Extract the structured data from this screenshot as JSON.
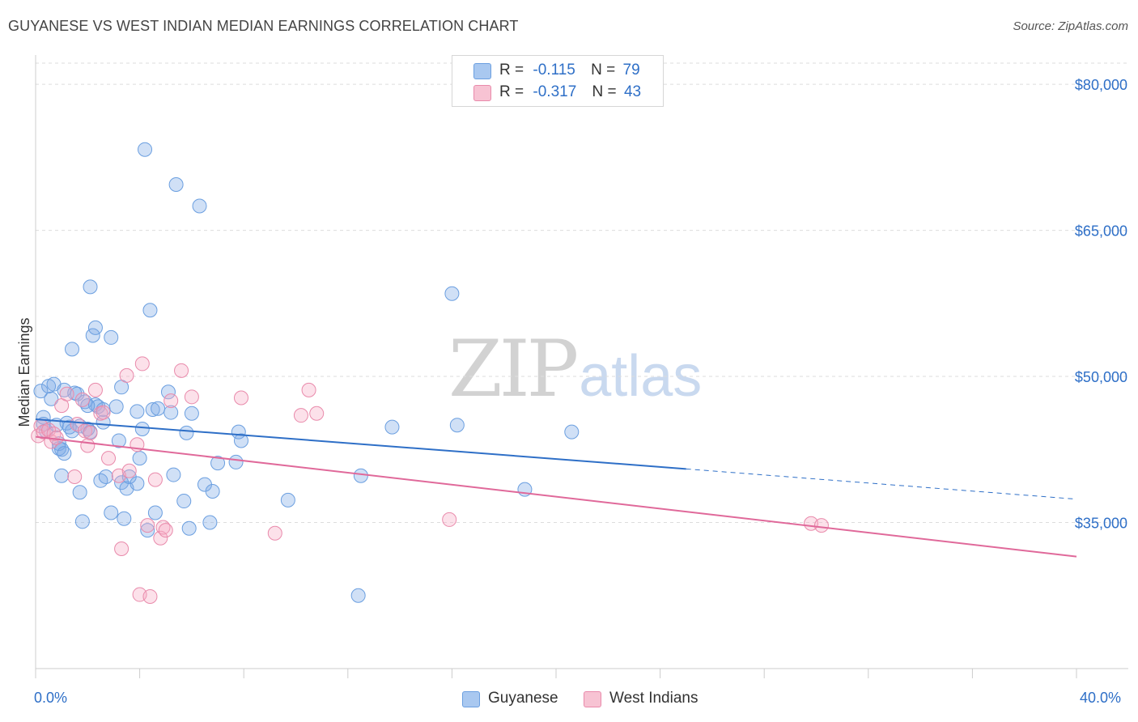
{
  "title": "GUYANESE VS WEST INDIAN MEDIAN EARNINGS CORRELATION CHART",
  "source": "Source: ZipAtlas.com",
  "watermark": {
    "zip": "ZIP",
    "atlas": "atlas"
  },
  "legend": {
    "r_label": "R =",
    "n_label": "N =",
    "series": [
      {
        "r": "-0.115",
        "n": "79",
        "color": "#a9c8f0",
        "border": "#6b9fe0"
      },
      {
        "r": "-0.317",
        "n": "43",
        "color": "#f7c3d3",
        "border": "#e98aab"
      }
    ]
  },
  "bottom_legend": [
    "Guyanese",
    "West Indians"
  ],
  "x_axis": {
    "min_label": "0.0%",
    "max_label": "40.0%"
  },
  "colors": {
    "blue": "#2e6fc7",
    "blue_fill": "rgba(120,165,230,0.35)",
    "blue_stroke": "#6b9fe0",
    "pink": "#e0699a",
    "pink_fill": "rgba(245,170,195,0.35)",
    "pink_stroke": "#e98aab",
    "tick_label": "#2e6fc7",
    "grid": "#dddddd"
  },
  "chart_data": {
    "type": "scatter",
    "title": "GUYANESE VS WEST INDIAN MEDIAN EARNINGS CORRELATION CHART",
    "xlabel": "",
    "ylabel": "Median Earnings",
    "xlim": [
      0,
      40
    ],
    "ylim": [
      20000,
      83000
    ],
    "y_ticks": [
      35000,
      50000,
      65000,
      80000
    ],
    "y_tick_labels": [
      "$35,000",
      "$50,000",
      "$65,000",
      "$80,000"
    ],
    "x_unit": "%",
    "grid": true,
    "legend_position": "top-center",
    "series": [
      {
        "name": "Guyanese",
        "r": -0.115,
        "n": 79,
        "trend": {
          "x0": 0,
          "y0": 45600,
          "x1": 25,
          "y1": 40500,
          "dash_to_x": 40,
          "dash_to_y": 37400
        },
        "points": [
          [
            0.2,
            48500
          ],
          [
            0.3,
            45800
          ],
          [
            0.3,
            45100
          ],
          [
            0.4,
            44400
          ],
          [
            0.5,
            49000
          ],
          [
            0.6,
            47700
          ],
          [
            0.7,
            49200
          ],
          [
            0.8,
            45000
          ],
          [
            0.9,
            43100
          ],
          [
            0.9,
            42600
          ],
          [
            1.0,
            42500
          ],
          [
            1.0,
            39800
          ],
          [
            1.1,
            42100
          ],
          [
            1.1,
            48600
          ],
          [
            1.2,
            45200
          ],
          [
            1.4,
            44400
          ],
          [
            1.4,
            52800
          ],
          [
            1.5,
            48300
          ],
          [
            1.6,
            48200
          ],
          [
            1.7,
            44900
          ],
          [
            1.7,
            38100
          ],
          [
            1.8,
            35100
          ],
          [
            1.9,
            47400
          ],
          [
            2.0,
            44600
          ],
          [
            2.1,
            44300
          ],
          [
            2.1,
            59200
          ],
          [
            2.2,
            54200
          ],
          [
            2.3,
            55000
          ],
          [
            2.3,
            47100
          ],
          [
            2.4,
            46900
          ],
          [
            2.5,
            39300
          ],
          [
            2.6,
            45300
          ],
          [
            2.6,
            46600
          ],
          [
            2.7,
            39700
          ],
          [
            2.9,
            54000
          ],
          [
            2.9,
            36000
          ],
          [
            3.1,
            46900
          ],
          [
            3.2,
            43400
          ],
          [
            3.3,
            48900
          ],
          [
            3.3,
            39100
          ],
          [
            3.4,
            35400
          ],
          [
            3.5,
            38500
          ],
          [
            3.6,
            39700
          ],
          [
            3.9,
            39000
          ],
          [
            3.9,
            46400
          ],
          [
            4.0,
            41600
          ],
          [
            4.1,
            44600
          ],
          [
            4.2,
            73300
          ],
          [
            4.3,
            34200
          ],
          [
            4.4,
            56800
          ],
          [
            4.5,
            46600
          ],
          [
            4.6,
            36000
          ],
          [
            4.7,
            46700
          ],
          [
            5.1,
            48400
          ],
          [
            5.2,
            46300
          ],
          [
            5.3,
            39900
          ],
          [
            5.4,
            69700
          ],
          [
            5.7,
            37200
          ],
          [
            5.8,
            44200
          ],
          [
            5.9,
            34400
          ],
          [
            6.0,
            46200
          ],
          [
            6.3,
            67500
          ],
          [
            6.5,
            38900
          ],
          [
            6.7,
            35000
          ],
          [
            6.8,
            38200
          ],
          [
            7.0,
            41100
          ],
          [
            7.7,
            41200
          ],
          [
            7.8,
            44300
          ],
          [
            7.9,
            43400
          ],
          [
            9.7,
            37300
          ],
          [
            12.4,
            27500
          ],
          [
            12.5,
            39800
          ],
          [
            13.7,
            44800
          ],
          [
            16.0,
            58500
          ],
          [
            16.2,
            45000
          ],
          [
            18.8,
            38400
          ],
          [
            20.6,
            44300
          ],
          [
            2.0,
            47000
          ],
          [
            1.3,
            44800
          ]
        ]
      },
      {
        "name": "West Indians",
        "r": -0.317,
        "n": 43,
        "trend": {
          "x0": 0,
          "y0": 43800,
          "x1": 40,
          "y1": 31500
        },
        "points": [
          [
            0.1,
            43900
          ],
          [
            0.2,
            44900
          ],
          [
            0.3,
            44300
          ],
          [
            0.5,
            44500
          ],
          [
            0.6,
            43300
          ],
          [
            0.7,
            44100
          ],
          [
            0.8,
            43700
          ],
          [
            1.0,
            47000
          ],
          [
            1.2,
            48200
          ],
          [
            1.5,
            39700
          ],
          [
            1.6,
            45100
          ],
          [
            1.9,
            44400
          ],
          [
            2.0,
            42900
          ],
          [
            2.1,
            44200
          ],
          [
            2.3,
            48600
          ],
          [
            2.5,
            46200
          ],
          [
            2.6,
            46300
          ],
          [
            2.8,
            41600
          ],
          [
            3.2,
            39800
          ],
          [
            3.3,
            32300
          ],
          [
            3.5,
            50100
          ],
          [
            3.6,
            40300
          ],
          [
            3.9,
            43000
          ],
          [
            4.0,
            27600
          ],
          [
            4.1,
            51300
          ],
          [
            4.3,
            34700
          ],
          [
            4.4,
            27400
          ],
          [
            4.6,
            39400
          ],
          [
            4.8,
            33400
          ],
          [
            4.9,
            34500
          ],
          [
            5.0,
            34200
          ],
          [
            5.2,
            47500
          ],
          [
            5.6,
            50600
          ],
          [
            6.0,
            47900
          ],
          [
            7.9,
            47800
          ],
          [
            9.2,
            33900
          ],
          [
            10.2,
            46000
          ],
          [
            10.5,
            48600
          ],
          [
            10.8,
            46200
          ],
          [
            15.9,
            35300
          ],
          [
            29.8,
            34900
          ],
          [
            30.2,
            34700
          ],
          [
            1.8,
            47600
          ]
        ]
      }
    ]
  }
}
